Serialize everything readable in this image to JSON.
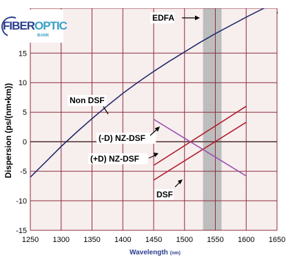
{
  "logo": {
    "part1": "FIBER",
    "part2": "OPTIC",
    "sub": "BANK"
  },
  "chart_data": {
    "type": "line",
    "xlabel": "Wavelength",
    "xunit": "(nm)",
    "ylabel": "Dispersion (ps/(nm•km))",
    "xlim": [
      1250,
      1650
    ],
    "ylim": [
      -15,
      22
    ],
    "xticks": [
      1250,
      1300,
      1350,
      1400,
      1450,
      1500,
      1550,
      1600,
      1650
    ],
    "yticks": [
      -15,
      -10,
      -5,
      0,
      5,
      10,
      15
    ],
    "grid": true,
    "colors": {
      "background": "#f7eeee",
      "grid": "#8c2b3a",
      "zero_line": "#5a3a3a",
      "edfa_band": "#bdbdbd",
      "nondsf": "#1f2a6b",
      "nzdsf": "#b01c2a",
      "dsf": "#9a4fb0"
    },
    "edfa": {
      "label": "EDFA",
      "range": [
        1530,
        1560
      ]
    },
    "series": [
      {
        "name": "Non DSF",
        "color": "#1f2a6b",
        "x": [
          1250,
          1275,
          1300,
          1325,
          1350,
          1375,
          1400,
          1425,
          1450,
          1475,
          1500,
          1525,
          1550,
          1575,
          1600,
          1625,
          1650
        ],
        "y": [
          -6,
          -3.4,
          -0.8,
          1.6,
          3.9,
          6.1,
          8.2,
          10.1,
          11.9,
          13.6,
          15.2,
          16.8,
          18.3,
          19.7,
          21.1,
          22.4,
          23.7
        ]
      },
      {
        "name": "(-D) NZ-DSF",
        "color": "#b01c2a",
        "x": [
          1450,
          1600
        ],
        "y": [
          -4,
          6
        ]
      },
      {
        "name": "(+D) NZ-DSF",
        "color": "#b01c2a",
        "x": [
          1450,
          1600
        ],
        "y": [
          -6.5,
          3.3
        ]
      },
      {
        "name": "DSF",
        "color": "#9a4fb0",
        "x": [
          1450,
          1600
        ],
        "y": [
          3.8,
          -5.8
        ]
      }
    ],
    "annotations": [
      {
        "text": "EDFA"
      },
      {
        "text": "Non DSF"
      },
      {
        "text": "(-D) NZ-DSF"
      },
      {
        "text": "(+D) NZ-DSF"
      },
      {
        "text": "DSF"
      }
    ]
  }
}
